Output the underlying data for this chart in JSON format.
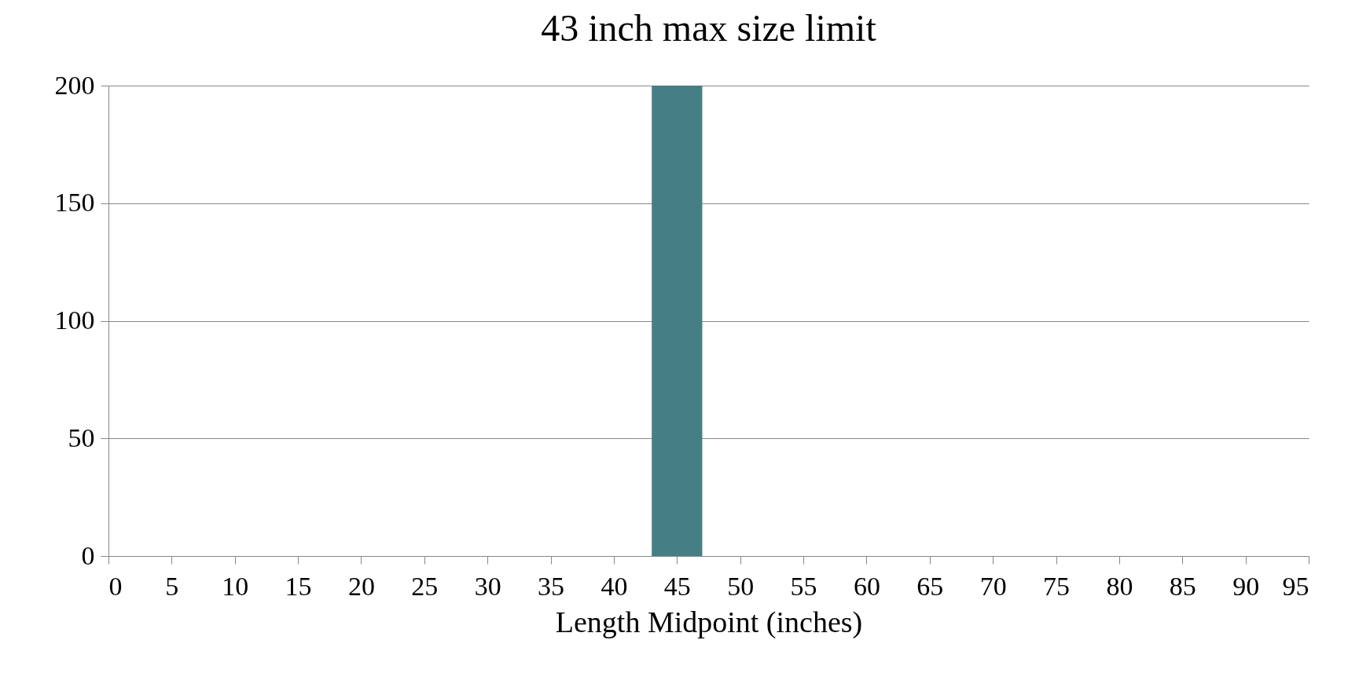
{
  "chart_data": {
    "type": "bar",
    "title": "43 inch max size limit",
    "xlabel": "Length Midpoint (inches)",
    "xlim": [
      0,
      95
    ],
    "xticks": [
      0,
      5,
      10,
      15,
      20,
      25,
      30,
      35,
      40,
      45,
      50,
      55,
      60,
      65,
      70,
      75,
      80,
      85,
      90,
      95
    ],
    "ylim": [
      0,
      200
    ],
    "yticks": [
      0,
      50,
      100,
      150,
      200
    ],
    "grid": "y",
    "bands": [
      {
        "axis": "x",
        "from": 43,
        "to": 47,
        "color": "#457f85"
      }
    ]
  }
}
